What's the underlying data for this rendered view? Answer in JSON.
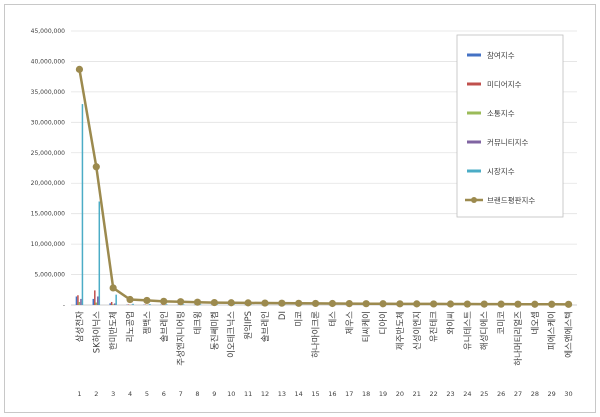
{
  "chart_data": {
    "type": "bar",
    "title": "",
    "xlabel": "",
    "ylabel": "",
    "ylim": [
      0,
      45000000
    ],
    "yticks": [
      0,
      5000000,
      10000000,
      15000000,
      20000000,
      25000000,
      30000000,
      35000000,
      40000000,
      45000000
    ],
    "ytick_labels": [
      "-",
      "5,000,000",
      "10,000,000",
      "15,000,000",
      "20,000,000",
      "25,000,000",
      "30,000,000",
      "35,000,000",
      "40,000,000",
      "45,000,000"
    ],
    "grid": true,
    "legend_position": "top-right",
    "categories": [
      "1",
      "2",
      "3",
      "4",
      "5",
      "6",
      "7",
      "8",
      "9",
      "10",
      "11",
      "12",
      "13",
      "14",
      "15",
      "16",
      "17",
      "18",
      "19",
      "20",
      "21",
      "22",
      "23",
      "24",
      "25",
      "26",
      "27",
      "28",
      "29",
      "30"
    ],
    "category_names": [
      "삼성전자",
      "SK하이닉스",
      "한미반도체",
      "리노공업",
      "젬백스",
      "솔브레인",
      "주성엔지니어링",
      "테크윙",
      "동진쎄미켐",
      "이오테크닉스",
      "원익IPS",
      "솔브레인",
      "DI",
      "미코",
      "하나마이크론",
      "테스",
      "제우스",
      "티씨케이",
      "디아이",
      "제주반도체",
      "신성이엔지",
      "유진테크",
      "와이씨",
      "유니테스트",
      "해성디에스",
      "코미코",
      "하나머티리얼즈",
      "네오셈",
      "피에스케이",
      "에스앤에스텍"
    ],
    "series": [
      {
        "name": "참여지수",
        "color": "#4472c4",
        "kind": "bar",
        "values": [
          1400000,
          1000000,
          280000,
          60000,
          50000,
          45000,
          40000,
          35000,
          30000,
          30000,
          28000,
          25000,
          22000,
          20000,
          20000,
          18000,
          18000,
          16000,
          15000,
          15000,
          14000,
          14000,
          13000,
          12000,
          12000,
          11000,
          11000,
          10000,
          10000,
          9000
        ]
      },
      {
        "name": "미디어지수",
        "color": "#c0504d",
        "kind": "bar",
        "values": [
          1600000,
          2400000,
          500000,
          90000,
          70000,
          60000,
          55000,
          50000,
          45000,
          40000,
          38000,
          35000,
          30000,
          28000,
          26000,
          24000,
          22000,
          20000,
          19000,
          18000,
          17000,
          16000,
          15000,
          14000,
          13000,
          12000,
          12000,
          11000,
          11000,
          10000
        ]
      },
      {
        "name": "소통지수",
        "color": "#9bbb59",
        "kind": "bar",
        "values": [
          500000,
          400000,
          120000,
          30000,
          25000,
          22000,
          20000,
          18000,
          16000,
          15000,
          14000,
          13000,
          12000,
          11000,
          10000,
          10000,
          9000,
          9000,
          8000,
          8000,
          7000,
          7000,
          7000,
          6000,
          6000,
          6000,
          5000,
          5000,
          5000,
          5000
        ]
      },
      {
        "name": "커뮤니티지수",
        "color": "#8064a2",
        "kind": "bar",
        "values": [
          1000000,
          1400000,
          250000,
          60000,
          50000,
          40000,
          38000,
          35000,
          30000,
          28000,
          26000,
          24000,
          22000,
          20000,
          18000,
          17000,
          16000,
          15000,
          14000,
          13000,
          12000,
          12000,
          11000,
          10000,
          10000,
          9000,
          9000,
          8000,
          8000,
          7000
        ]
      },
      {
        "name": "시장지수",
        "color": "#4bacc6",
        "kind": "bar",
        "values": [
          33000000,
          17000000,
          1700000,
          200000,
          150000,
          120000,
          110000,
          100000,
          90000,
          85000,
          80000,
          75000,
          70000,
          65000,
          60000,
          55000,
          50000,
          48000,
          45000,
          42000,
          40000,
          38000,
          36000,
          34000,
          32000,
          30000,
          28000,
          26000,
          24000,
          22000
        ]
      },
      {
        "name": "브랜드평판지수",
        "color": "#9c8a4e",
        "kind": "line",
        "values": [
          38700000,
          22700000,
          2800000,
          900000,
          750000,
          600000,
          540000,
          460000,
          400000,
          370000,
          350000,
          320000,
          300000,
          280000,
          260000,
          245000,
          230000,
          215000,
          205000,
          195000,
          185000,
          175000,
          165000,
          155000,
          148000,
          140000,
          132000,
          125000,
          118000,
          110000
        ]
      }
    ]
  }
}
